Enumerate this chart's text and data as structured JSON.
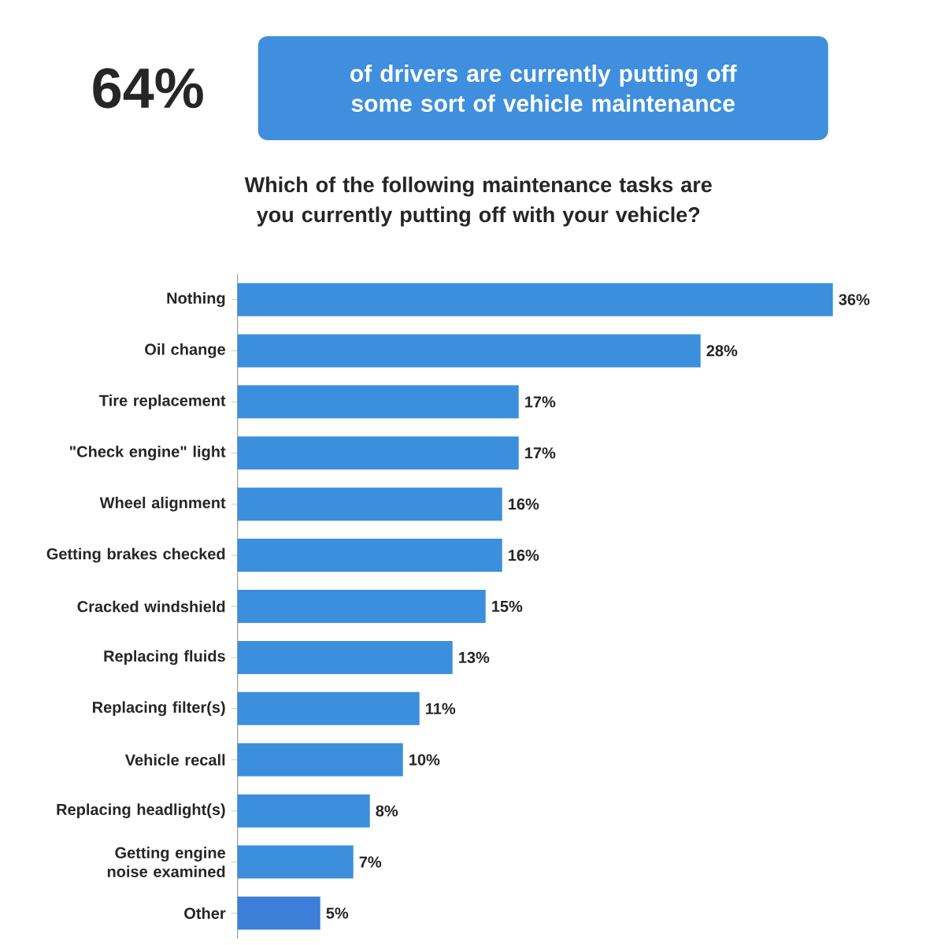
{
  "chart_data": {
    "type": "bar",
    "orientation": "horizontal",
    "title": "Which of the following maintenance tasks are you currently putting off with your vehicle?",
    "annotations": [
      "64%",
      "of drivers are currently putting off some sort of vehicle maintenance"
    ],
    "categories": [
      "Nothing",
      "Oil change",
      "Tire replacement",
      "\"Check engine\" light",
      "Wheel alignment",
      "Getting brakes checked",
      "Cracked windshield",
      "Replacing fluids",
      "Replacing filter(s)",
      "Vehicle recall",
      "Replacing headlight(s)",
      "Getting engine noise examined",
      "Other"
    ],
    "values": [
      36,
      28,
      17,
      17,
      16,
      16,
      15,
      13,
      11,
      10,
      8,
      7,
      5
    ],
    "value_labels": [
      "36%",
      "28%",
      "17%",
      "17%",
      "16%",
      "16%",
      "15%",
      "13%",
      "11%",
      "10%",
      "8%",
      "7%",
      "5%"
    ],
    "colors": [
      "#3b8fdd",
      "#3b8fdd",
      "#3b8fdd",
      "#3b8fdd",
      "#3b8fdd",
      "#3b8fdd",
      "#3b8fdd",
      "#3b8fdd",
      "#3b8fdd",
      "#3b8fdd",
      "#3b8fdd",
      "#3b8fdd",
      "#3c7ed8"
    ]
  }
}
